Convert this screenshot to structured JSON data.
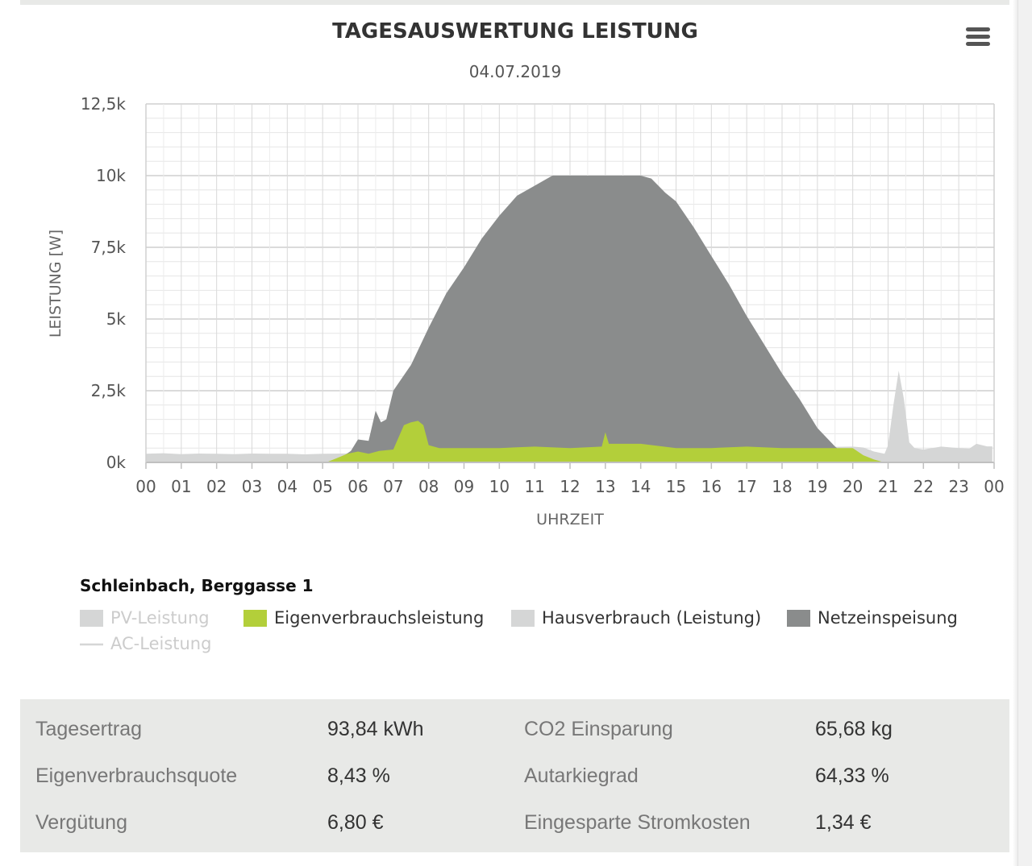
{
  "header": {
    "title": "TAGESAUSWERTUNG LEISTUNG",
    "date": "04.07.2019",
    "menu_icon": "hamburger-menu-icon"
  },
  "chart_data": {
    "type": "area",
    "title": "TAGESAUSWERTUNG LEISTUNG",
    "subtitle": "04.07.2019",
    "xlabel": "UHRZEIT",
    "ylabel": "LEISTUNG [W]",
    "ylim": [
      0,
      12500
    ],
    "xlim": [
      0,
      24
    ],
    "grid": true,
    "y_ticks": [
      0,
      2500,
      5000,
      7500,
      10000,
      12500
    ],
    "y_tick_labels": [
      "0k",
      "2,5k",
      "5k",
      "7,5k",
      "10k",
      "12,5k"
    ],
    "x_tick_labels": [
      "00",
      "01",
      "02",
      "03",
      "04",
      "05",
      "06",
      "07",
      "08",
      "09",
      "10",
      "11",
      "12",
      "13",
      "14",
      "15",
      "16",
      "17",
      "18",
      "19",
      "20",
      "21",
      "22",
      "23",
      "00"
    ],
    "series": [
      {
        "name": "Hausverbrauch (Leistung)",
        "color": "#d5d6d6",
        "x": [
          0,
          0.5,
          1,
          1.5,
          2,
          2.5,
          3,
          3.5,
          4,
          4.5,
          5,
          5.1,
          20,
          20.3,
          20.6,
          20.9,
          21.0,
          21.15,
          21.3,
          21.45,
          21.6,
          21.75,
          22.0,
          22.5,
          23.0,
          23.3,
          23.5,
          23.8,
          23.95
        ],
        "values": [
          300,
          320,
          290,
          310,
          300,
          290,
          310,
          300,
          300,
          280,
          300,
          300,
          550,
          520,
          380,
          300,
          600,
          2000,
          3200,
          2200,
          700,
          500,
          450,
          550,
          500,
          480,
          650,
          560,
          560
        ]
      },
      {
        "name": "Netzeinspeisung",
        "color": "#8a8c8c",
        "x": [
          5.1,
          5.5,
          5.8,
          6.0,
          6.3,
          6.5,
          6.65,
          6.8,
          7.0,
          7.5,
          8.0,
          8.5,
          9.0,
          9.5,
          10.0,
          10.5,
          11.0,
          11.5,
          12.0,
          12.5,
          13.0,
          13.5,
          14.0,
          14.3,
          14.7,
          15.0,
          15.5,
          16.0,
          16.5,
          17.0,
          17.5,
          18.0,
          18.5,
          19.0,
          19.5,
          19.8,
          20.0,
          20.3,
          20.6,
          20.9
        ],
        "values": [
          0,
          150,
          400,
          800,
          750,
          1800,
          1400,
          1500,
          2500,
          3400,
          4700,
          5900,
          6800,
          7800,
          8600,
          9300,
          9650,
          10000,
          10000,
          10000,
          10000,
          10000,
          10000,
          9900,
          9400,
          9100,
          8200,
          7200,
          6200,
          5100,
          4100,
          3100,
          2200,
          1200,
          550,
          250,
          0,
          0,
          0,
          0
        ]
      },
      {
        "name": "Eigenverbrauchsleistung",
        "color": "#b3cf3a",
        "x": [
          5.1,
          5.4,
          5.7,
          6.0,
          6.3,
          6.6,
          7.0,
          7.3,
          7.5,
          7.7,
          7.85,
          8.0,
          8.3,
          9.0,
          10.0,
          11.0,
          12.0,
          12.9,
          13.0,
          13.1,
          13.5,
          14.0,
          15.0,
          16.0,
          17.0,
          18.0,
          19.0,
          19.8,
          20.0,
          20.3,
          20.6,
          20.9
        ],
        "values": [
          0,
          150,
          300,
          380,
          300,
          400,
          450,
          1300,
          1400,
          1450,
          1300,
          600,
          500,
          500,
          500,
          550,
          500,
          550,
          1050,
          650,
          650,
          650,
          500,
          500,
          550,
          500,
          500,
          500,
          500,
          250,
          100,
          0
        ]
      },
      {
        "name": "PV-Leistung",
        "color": "#d5d6d6",
        "visible": false,
        "values": []
      },
      {
        "name": "AC-Leistung",
        "color": "#d5d6d6",
        "visible": false,
        "values": []
      }
    ]
  },
  "legend": {
    "heading": "Schleinbach, Berggasse 1",
    "items": [
      {
        "label": "PV-Leistung",
        "color": "#d5d6d6",
        "enabled": false,
        "symbol": "box"
      },
      {
        "label": "Eigenverbrauchsleistung",
        "color": "#b3cf3a",
        "enabled": true,
        "symbol": "box"
      },
      {
        "label": "Hausverbrauch (Leistung)",
        "color": "#d5d6d6",
        "enabled": true,
        "symbol": "box"
      },
      {
        "label": "Netzeinspeisung",
        "color": "#8a8c8c",
        "enabled": true,
        "symbol": "box"
      },
      {
        "label": "AC-Leistung",
        "color": "#d5d6d6",
        "enabled": false,
        "symbol": "line"
      }
    ]
  },
  "summary": {
    "rows": [
      {
        "label1": "Tagesertrag",
        "value1": "93,84 kWh",
        "label2": "CO2 Einsparung",
        "value2": "65,68 kg"
      },
      {
        "label1": "Eigenverbrauchsquote",
        "value1": "8,43 %",
        "label2": "Autarkiegrad",
        "value2": "64,33 %"
      },
      {
        "label1": "Vergütung",
        "value1": "6,80 €",
        "label2": "Eingesparte Stromkosten",
        "value2": "1,34 €"
      }
    ]
  }
}
